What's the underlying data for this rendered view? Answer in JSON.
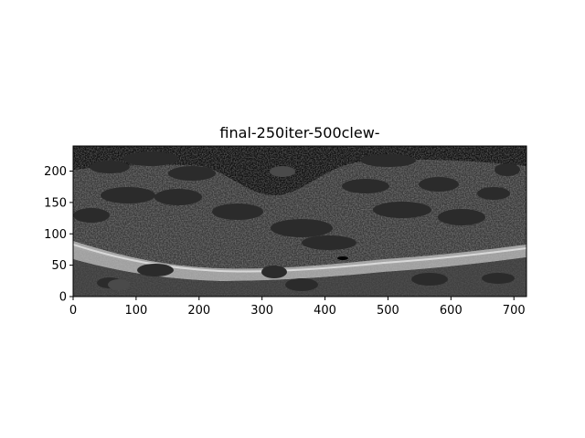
{
  "chart_data": {
    "type": "heatmap",
    "title": "final-250iter-500clew-",
    "xlabel": "",
    "ylabel": "",
    "xlim": [
      0,
      720
    ],
    "ylim": [
      0,
      240
    ],
    "x_ticks": [
      0,
      100,
      200,
      300,
      400,
      500,
      600,
      700
    ],
    "y_ticks": [
      0,
      50,
      100,
      150,
      200
    ],
    "colormap": "gray",
    "grid": false,
    "colors": {
      "background": "#2a2a2a",
      "tissue_texture": "#6e6e6e",
      "bright_band": "#d8d8d8",
      "dark_top": "#0e0e0e",
      "blob": "#2b2b2b",
      "blob_light": "#4a4a4a"
    }
  }
}
